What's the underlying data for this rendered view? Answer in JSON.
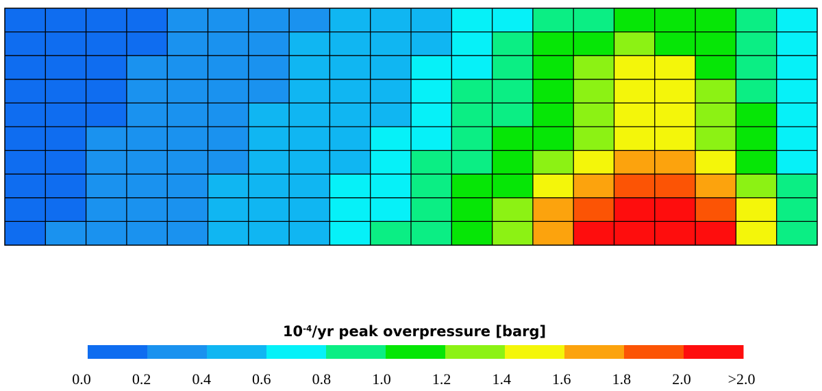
{
  "chart_data": {
    "type": "heatmap",
    "title": "",
    "legend": {
      "title_base": "10",
      "title_exp": "-4",
      "title_rest": "/yr peak overpressure [barg]",
      "placement": "bottom",
      "bins": [
        {
          "label": "0.0",
          "color": "#0f6df0"
        },
        {
          "label": "0.2",
          "color": "#1a92ef"
        },
        {
          "label": "0.4",
          "color": "#10b6f2"
        },
        {
          "label": "0.6",
          "color": "#06f1f8"
        },
        {
          "label": "0.8",
          "color": "#0bee84"
        },
        {
          "label": "1.0",
          "color": "#06e606"
        },
        {
          "label": "1.2",
          "color": "#8cf214"
        },
        {
          "label": "1.4",
          "color": "#f4f60a"
        },
        {
          "label": "1.6",
          "color": "#fca30d"
        },
        {
          "label": "1.8",
          "color": "#fc5405"
        },
        {
          "label": "2.0",
          "color": "#fe0d0d"
        },
        {
          "label": ">2.0",
          "color": ""
        }
      ]
    },
    "grid": {
      "columns": 20,
      "rows": 10,
      "grid_lines": true
    },
    "values": [
      [
        0.05,
        0.05,
        0.05,
        0.15,
        0.2,
        0.25,
        0.3,
        0.35,
        0.4,
        0.45,
        0.55,
        0.65,
        0.75,
        0.85,
        0.95,
        1.05,
        1.05,
        1.0,
        0.85,
        0.7
      ],
      [
        0.05,
        0.05,
        0.1,
        0.15,
        0.25,
        0.3,
        0.35,
        0.4,
        0.45,
        0.5,
        0.6,
        0.7,
        0.85,
        1.0,
        1.1,
        1.25,
        1.2,
        1.1,
        0.9,
        0.7
      ],
      [
        0.05,
        0.05,
        0.1,
        0.2,
        0.25,
        0.3,
        0.35,
        0.4,
        0.45,
        0.55,
        0.65,
        0.75,
        0.9,
        1.05,
        1.25,
        1.45,
        1.45,
        1.2,
        0.95,
        0.7
      ],
      [
        0.05,
        0.05,
        0.15,
        0.2,
        0.25,
        0.3,
        0.35,
        0.4,
        0.45,
        0.55,
        0.7,
        0.8,
        0.95,
        1.05,
        1.25,
        1.5,
        1.5,
        1.25,
        0.95,
        0.7
      ],
      [
        0.05,
        0.05,
        0.15,
        0.2,
        0.25,
        0.35,
        0.4,
        0.45,
        0.5,
        0.6,
        0.7,
        0.85,
        0.95,
        1.1,
        1.3,
        1.55,
        1.55,
        1.3,
        1.0,
        0.7
      ],
      [
        0.05,
        0.1,
        0.2,
        0.25,
        0.3,
        0.35,
        0.4,
        0.45,
        0.55,
        0.65,
        0.75,
        0.85,
        1.0,
        1.15,
        1.4,
        1.55,
        1.55,
        1.35,
        1.05,
        0.75
      ],
      [
        0.05,
        0.15,
        0.2,
        0.25,
        0.3,
        0.35,
        0.45,
        0.5,
        0.6,
        0.7,
        0.8,
        0.95,
        1.1,
        1.35,
        1.55,
        1.65,
        1.65,
        1.45,
        1.15,
        0.75
      ],
      [
        0.05,
        0.15,
        0.2,
        0.25,
        0.35,
        0.4,
        0.45,
        0.55,
        0.65,
        0.75,
        0.85,
        1.0,
        1.2,
        1.5,
        1.75,
        1.85,
        1.85,
        1.65,
        1.3,
        0.8
      ],
      [
        0.1,
        0.15,
        0.2,
        0.3,
        0.35,
        0.4,
        0.5,
        0.55,
        0.65,
        0.75,
        0.9,
        1.1,
        1.3,
        1.6,
        1.95,
        2.1,
        2.1,
        1.85,
        1.45,
        0.85
      ],
      [
        0.1,
        0.2,
        0.25,
        0.3,
        0.35,
        0.45,
        0.5,
        0.6,
        0.7,
        0.8,
        0.95,
        1.15,
        1.4,
        1.7,
        2.05,
        2.2,
        2.2,
        2.0,
        1.55,
        0.9
      ]
    ]
  }
}
